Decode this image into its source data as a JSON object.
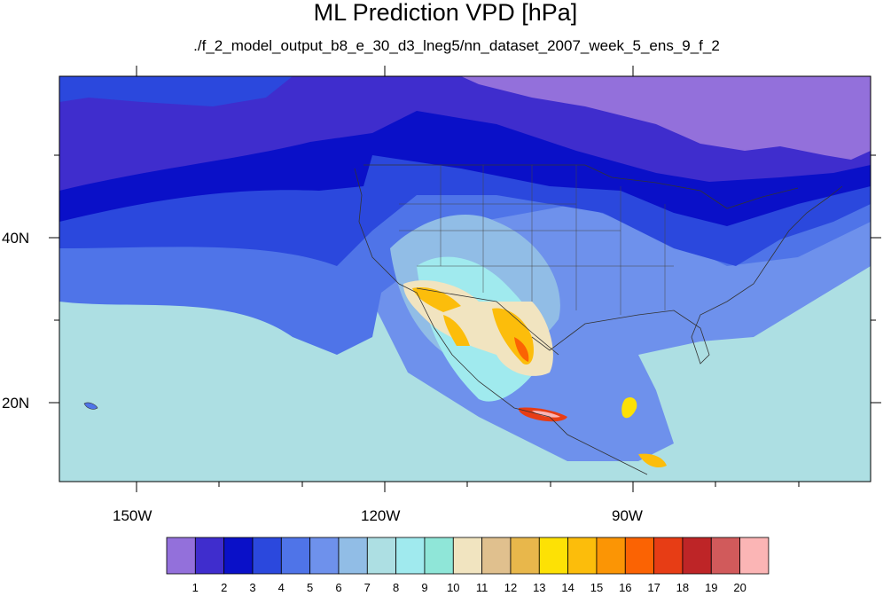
{
  "title": "ML Prediction VPD [hPa]",
  "subtitle": "./f_2_model_output_b8_e_30_d3_lneg5/nn_dataset_2007_week_5_ens_9_f_2",
  "axes": {
    "lon_labels": [
      "150W",
      "120W",
      "90W"
    ],
    "lat_labels": [
      "40N",
      "20N"
    ]
  },
  "colorbar": {
    "labels": [
      "1",
      "2",
      "3",
      "4",
      "5",
      "6",
      "7",
      "8",
      "9",
      "10",
      "11",
      "12",
      "13",
      "14",
      "15",
      "16",
      "17",
      "18",
      "19",
      "20"
    ],
    "colors": [
      "#9370db",
      "#3f2dcd",
      "#0a10c8",
      "#2b48dd",
      "#4f74e8",
      "#6e91ec",
      "#91bde6",
      "#addfe3",
      "#a0eaee",
      "#8fe6d8",
      "#f1e4c0",
      "#e0c08e",
      "#e8b74b",
      "#fde105",
      "#fcbd0b",
      "#fb9505",
      "#fb6303",
      "#e73d15",
      "#be2527",
      "#d15a5b",
      "#fbb5b5"
    ]
  }
}
